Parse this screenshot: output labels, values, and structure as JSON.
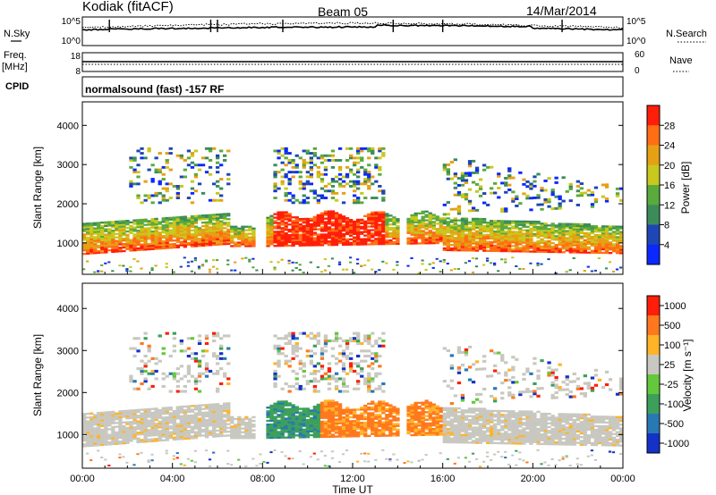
{
  "header": {
    "station": "Kodiak (fitACF)",
    "beam": "Beam 05",
    "date": "14/Mar/2014"
  },
  "top_panels": {
    "nsky_label": "N.Sky",
    "nsky_ticks": [
      "10^5",
      "10^0"
    ],
    "nsearch_label": "N.Search",
    "nsearch_ticks": [
      "10^5",
      "10^0"
    ],
    "freq_label_1": "Freq.",
    "freq_label_2": "[MHz]",
    "freq_ticks": [
      "18",
      "8"
    ],
    "nave_label": "Nave",
    "nave_ticks": [
      "60",
      "0"
    ],
    "cpid_label": "CPID",
    "cpid_text": "normalsound (fast) -157 RF"
  },
  "chart_data": [
    {
      "type": "heatmap",
      "title": "",
      "ylabel": "Slant Range [km]",
      "xlabel": "",
      "ylim": [
        200,
        4600
      ],
      "xlim": [
        0,
        24
      ],
      "yticks": [
        "1000",
        "2000",
        "3000",
        "4000"
      ],
      "colorbar": {
        "label": "Power [dB]",
        "ticks": [
          "4",
          "8",
          "12",
          "16",
          "20",
          "24",
          "28"
        ],
        "colors": [
          "#0a28ff",
          "#1e46b4",
          "#3c8c5a",
          "#5aaa3c",
          "#c8c81e",
          "#e6a014",
          "#ff6e14",
          "#ff1e0a"
        ]
      }
    },
    {
      "type": "heatmap",
      "title": "",
      "ylabel": "Slant Range [km]",
      "xlabel": "Time UT",
      "ylim": [
        200,
        4600
      ],
      "xlim": [
        0,
        24
      ],
      "yticks": [
        "1000",
        "2000",
        "3000",
        "4000"
      ],
      "xticks": [
        "00:00",
        "04:00",
        "08:00",
        "12:00",
        "16:00",
        "20:00",
        "00:00"
      ],
      "colorbar": {
        "label": "Velocity [m s⁻¹]",
        "ticks": [
          "1000",
          "500",
          "100",
          "25",
          "-25",
          "-100",
          "-500",
          "-1000"
        ],
        "colors": [
          "#1432c8",
          "#2878b4",
          "#3ca05a",
          "#64c83c",
          "#c8c8c0",
          "#ffb428",
          "#ff781e",
          "#ff1e0a"
        ]
      }
    }
  ]
}
